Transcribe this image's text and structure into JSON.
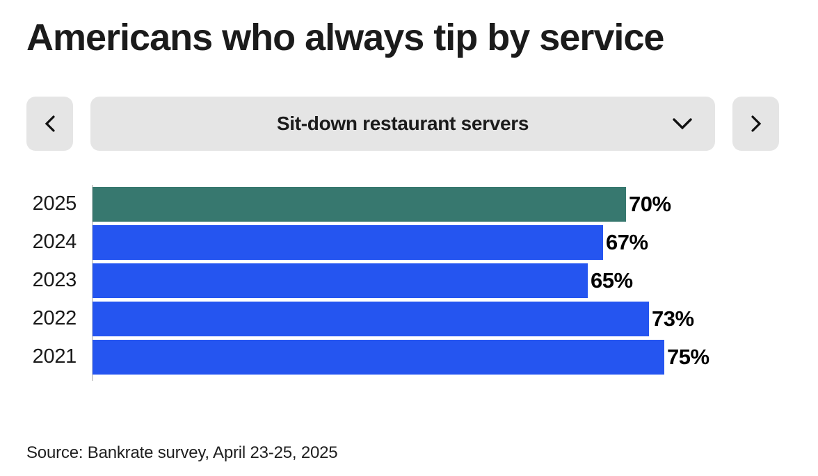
{
  "title": "Americans who always tip by service",
  "selector": {
    "selected_option": "Sit-down restaurant servers",
    "prev_icon": "chevron-left-icon",
    "next_icon": "chevron-right-icon",
    "dropdown_icon": "chevron-down-icon"
  },
  "chart_data": {
    "type": "bar",
    "orientation": "horizontal",
    "title": "Americans who always tip by service",
    "subtitle_selector": "Sit-down restaurant servers",
    "categories": [
      "2025",
      "2024",
      "2023",
      "2022",
      "2021"
    ],
    "values": [
      70,
      67,
      65,
      73,
      75
    ],
    "value_labels": [
      "70%",
      "67%",
      "65%",
      "73%",
      "75%"
    ],
    "value_label_position": "end",
    "highlight_category": "2025",
    "colors": {
      "highlight_bar": "#37786F",
      "default_bar": "#2555F0",
      "axis_line": "#CFCFCF",
      "control_background": "#E5E5E5",
      "text": "#1B1B1B"
    },
    "xlim": [
      0,
      100
    ],
    "grid": false,
    "legend": false
  },
  "source": "Source: Bankrate survey, April 23-25, 2025"
}
